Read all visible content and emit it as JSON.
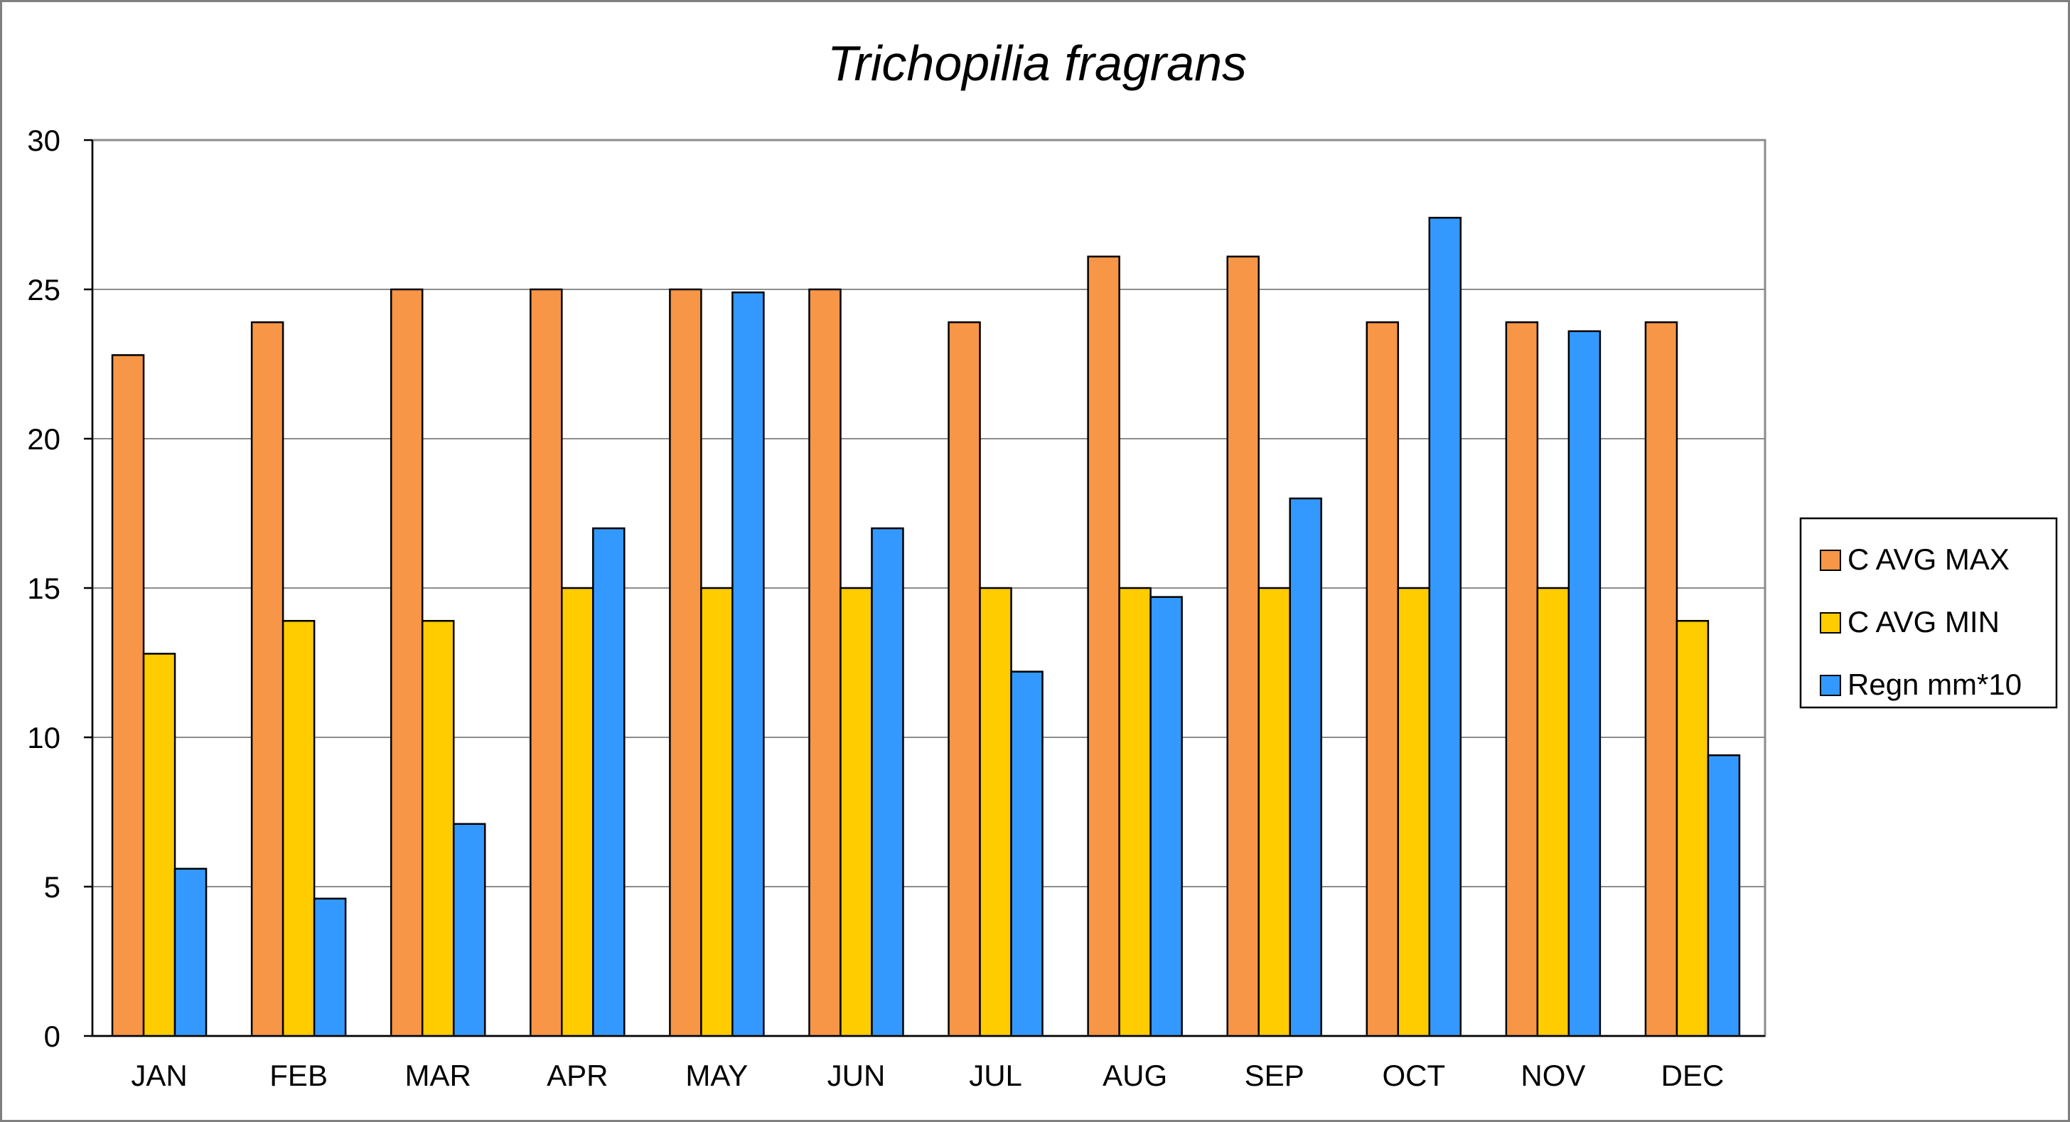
{
  "chart_data": {
    "type": "bar",
    "title": "Trichopilia fragrans",
    "xlabel": "",
    "ylabel": "",
    "ylim": [
      0,
      30
    ],
    "yticks": [
      0,
      5,
      10,
      15,
      20,
      25,
      30
    ],
    "grid": true,
    "legend_position": "right",
    "categories": [
      "JAN",
      "FEB",
      "MAR",
      "APR",
      "MAY",
      "JUN",
      "JUL",
      "AUG",
      "SEP",
      "OCT",
      "NOV",
      "DEC"
    ],
    "series": [
      {
        "name": "C AVG MAX",
        "color": "#f79646",
        "values": [
          22.8,
          23.9,
          25,
          25,
          25,
          25,
          23.9,
          26.1,
          26.1,
          23.9,
          23.9,
          23.9
        ]
      },
      {
        "name": "C AVG MIN",
        "color": "#ffcc00",
        "values": [
          12.8,
          13.9,
          13.9,
          15,
          15,
          15,
          15,
          15,
          15,
          15,
          15,
          13.9
        ]
      },
      {
        "name": "Regn mm*10",
        "color": "#3399ff",
        "values": [
          5.6,
          4.6,
          7.1,
          17,
          24.9,
          17,
          12.2,
          14.7,
          18,
          27.4,
          23.6,
          9.4
        ]
      }
    ]
  }
}
